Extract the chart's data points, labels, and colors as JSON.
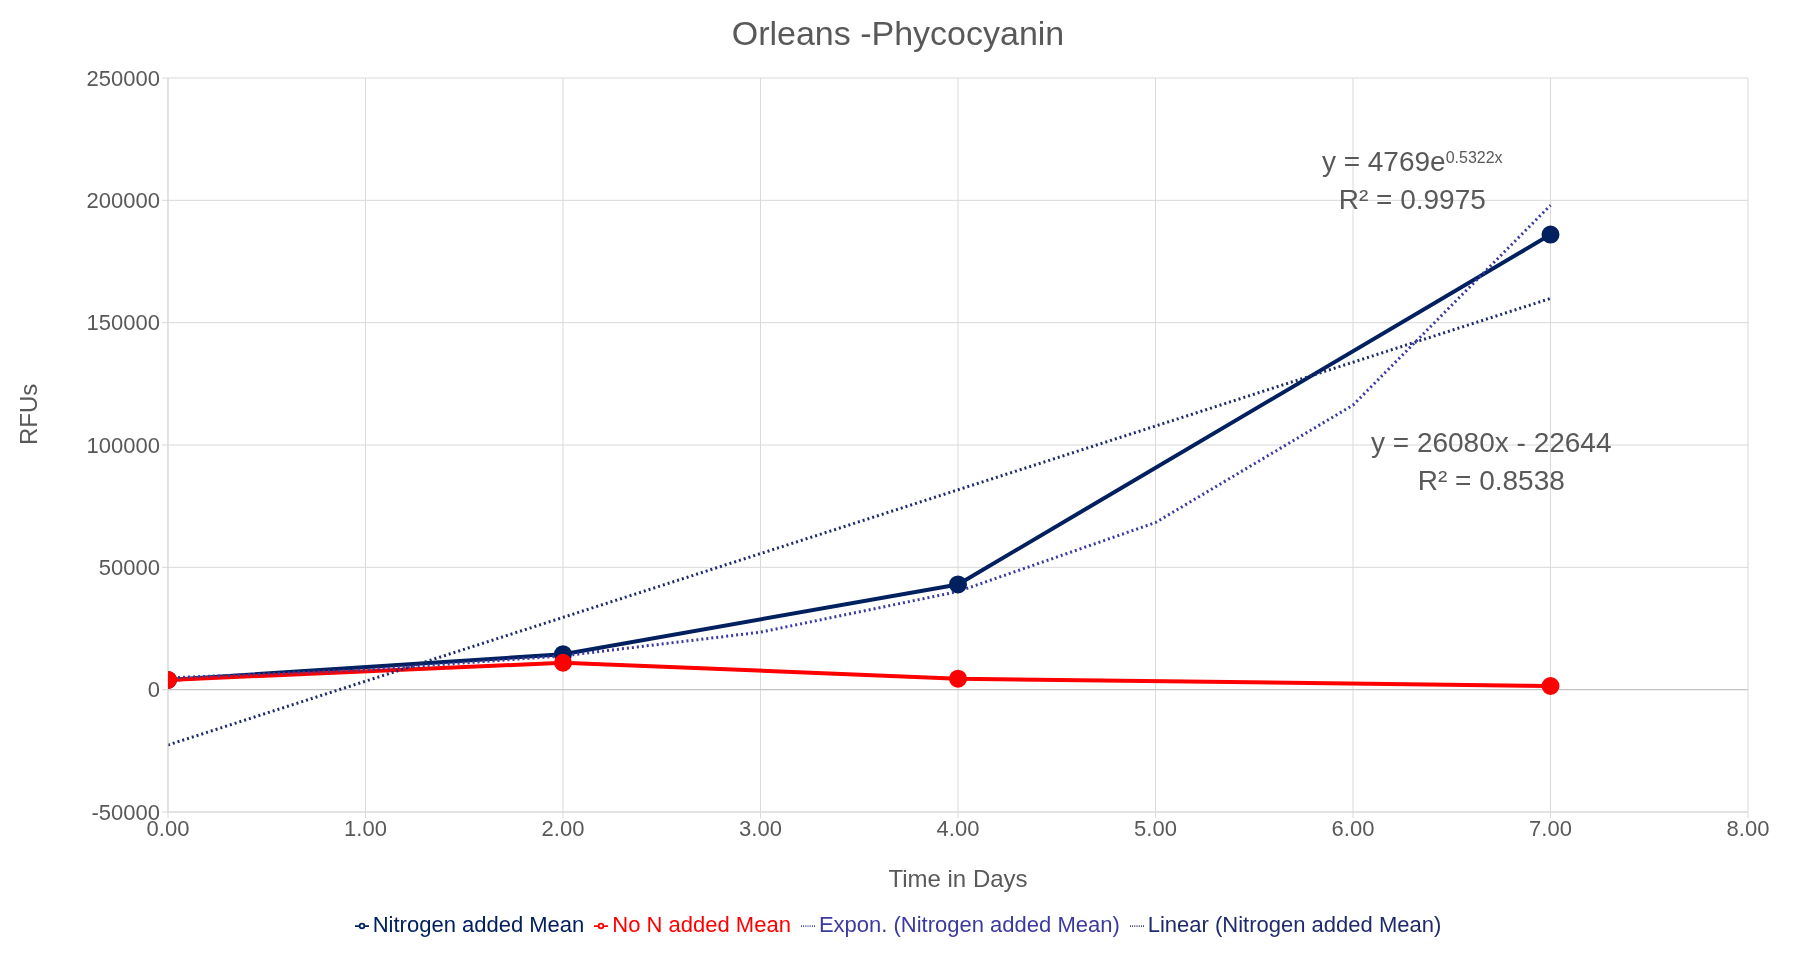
{
  "chart_data": {
    "type": "line",
    "title": "Orleans -Phycocyanin",
    "xlabel": "Time in Days",
    "ylabel": "RFUs",
    "x": [
      0,
      2,
      4,
      7
    ],
    "series": [
      {
        "name": "Nitrogen added Mean",
        "color": "#002060",
        "values": [
          4000,
          14500,
          43000,
          186000
        ],
        "marker": "circle",
        "line_style": "solid"
      },
      {
        "name": "No N added Mean",
        "color": "#ff0000",
        "values": [
          4000,
          11000,
          4500,
          1500
        ],
        "marker": "circle",
        "line_style": "solid"
      },
      {
        "name": "Expon. (Nitrogen added Mean)",
        "color": "#3a3aa0",
        "x": [
          0,
          1,
          2,
          3,
          4,
          5,
          6,
          7
        ],
        "values": [
          4800,
          8100,
          13800,
          23500,
          40100,
          68300,
          116300,
          198000
        ],
        "marker": "none",
        "line_style": "dotted"
      },
      {
        "name": "Linear (Nitrogen added Mean)",
        "color": "#1f2a6b",
        "x": [
          0,
          7
        ],
        "values": [
          -22600,
          159900
        ],
        "marker": "none",
        "line_style": "dotted"
      }
    ],
    "xlim": [
      0,
      8
    ],
    "xticks": [
      {
        "value": 0,
        "label": "0.00"
      },
      {
        "value": 1,
        "label": "1.00"
      },
      {
        "value": 2,
        "label": "2.00"
      },
      {
        "value": 3,
        "label": "3.00"
      },
      {
        "value": 4,
        "label": "4.00"
      },
      {
        "value": 5,
        "label": "5.00"
      },
      {
        "value": 6,
        "label": "6.00"
      },
      {
        "value": 7,
        "label": "7.00"
      },
      {
        "value": 8,
        "label": "8.00"
      }
    ],
    "ylim": [
      -50000,
      250000
    ],
    "yticks": [
      -50000,
      0,
      50000,
      100000,
      150000,
      200000,
      250000
    ],
    "grid": true,
    "legend": "bottom",
    "annotations": [
      "y = 4769e$^{0.5322x}$\nR² = 0.9975",
      "y = 26080x - 22644\nR² = 0.8538"
    ]
  }
}
